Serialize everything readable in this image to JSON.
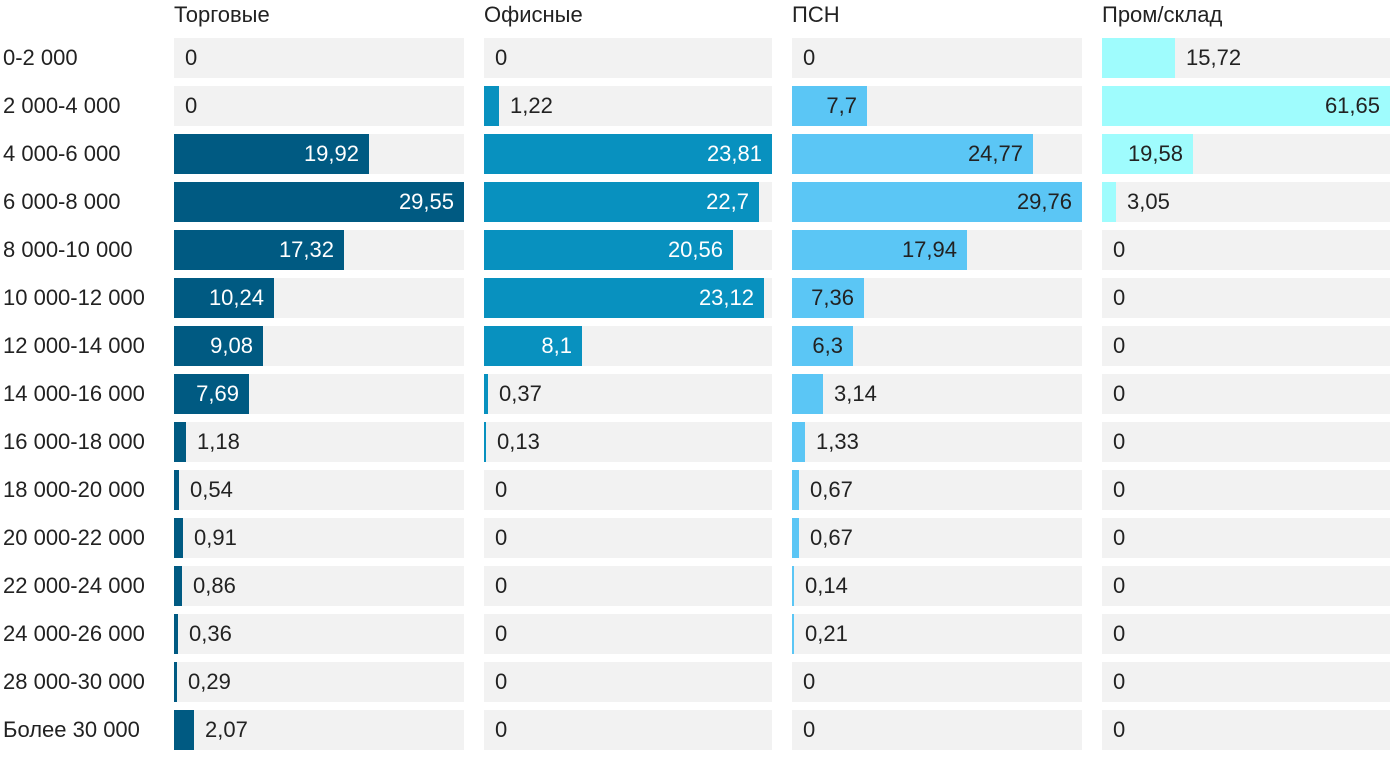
{
  "chart_data": {
    "type": "bar",
    "orientation": "horizontal",
    "layout": "small-multiples",
    "grid": false,
    "categories": [
      "0-2 000",
      "2 000-4 000",
      "4 000-6 000",
      "6 000-8 000",
      "8 000-10 000",
      "10 000-12 000",
      "12 000-14 000",
      "14 000-16 000",
      "16 000-18 000",
      "18 000-20 000",
      "20 000-22 000",
      "22 000-24 000",
      "24 000-26 000",
      "28 000-30 000",
      "Более 30 000"
    ],
    "series": [
      {
        "name": "Торговые",
        "color": "#005a82",
        "xlim": [
          0,
          29.55
        ],
        "values": [
          0,
          0,
          19.92,
          29.55,
          17.32,
          10.24,
          9.08,
          7.69,
          1.18,
          0.54,
          0.91,
          0.86,
          0.36,
          0.29,
          2.07
        ],
        "labels": [
          "0",
          "0",
          "19,92",
          "29,55",
          "17,32",
          "10,24",
          "9,08",
          "7,69",
          "1,18",
          "0,54",
          "0,91",
          "0,86",
          "0,36",
          "0,29",
          "2,07"
        ]
      },
      {
        "name": "Офисные",
        "color": "#0891bf",
        "xlim": [
          0,
          23.81
        ],
        "values": [
          0,
          1.22,
          23.81,
          22.7,
          20.56,
          23.12,
          8.1,
          0.37,
          0.13,
          0,
          0,
          0,
          0,
          0,
          0
        ],
        "labels": [
          "0",
          "1,22",
          "23,81",
          "22,7",
          "20,56",
          "23,12",
          "8,1",
          "0,37",
          "0,13",
          "0",
          "0",
          "0",
          "0",
          "0",
          "0"
        ]
      },
      {
        "name": "ПСН",
        "color": "#5bc6f5",
        "xlim": [
          0,
          29.76
        ],
        "values": [
          0,
          7.7,
          24.77,
          29.76,
          17.94,
          7.36,
          6.3,
          3.14,
          1.33,
          0.67,
          0.67,
          0.14,
          0.21,
          0,
          0
        ],
        "labels": [
          "0",
          "7,7",
          "24,77",
          "29,76",
          "17,94",
          "7,36",
          "6,3",
          "3,14",
          "1,33",
          "0,67",
          "0,67",
          "0,14",
          "0,21",
          "0",
          "0"
        ]
      },
      {
        "name": "Пром/склад",
        "color": "#9ffcfd",
        "xlim": [
          0,
          61.65
        ],
        "values": [
          15.72,
          61.65,
          19.58,
          3.05,
          0,
          0,
          0,
          0,
          0,
          0,
          0,
          0,
          0,
          0,
          0
        ],
        "labels": [
          "15,72",
          "61,65",
          "19,58",
          "3,05",
          "0",
          "0",
          "0",
          "0",
          "0",
          "0",
          "0",
          "0",
          "0",
          "0",
          "0"
        ]
      }
    ]
  }
}
